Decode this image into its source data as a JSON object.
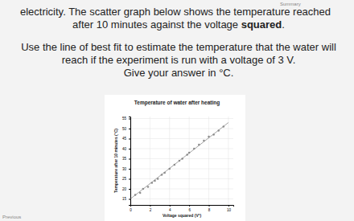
{
  "nav": {
    "summary": "Summary",
    "previous": "Previous"
  },
  "question": {
    "line1": "electricity. The scatter graph below shows the temperature reached",
    "line2": {
      "before": "after 10 minutes against the voltage ",
      "bold": "squared",
      "after": "."
    },
    "line3": "Use the line of best fit to estimate the temperature that the water will",
    "line4": "reach if the experiment is run with a voltage of 3 V.",
    "line5": "Give your answer in °C."
  },
  "chart_data": {
    "type": "scatter",
    "title": "Temperature of water after heating",
    "x_label": "Voltage squared (V²)",
    "y_label": "Temperature after 10 minutes (°C)",
    "x": [
      0.5,
      1,
      1.3,
      1.8,
      2.2,
      2.5,
      2.8,
      3.2,
      3.5,
      4,
      4.5,
      5,
      5.3,
      5.8,
      6,
      6.5,
      7,
      7.5,
      8,
      8.5,
      9,
      9.5
    ],
    "y": [
      17,
      18,
      20,
      21,
      23,
      24,
      25,
      27,
      28,
      30,
      32,
      34,
      35,
      37,
      38,
      40,
      42,
      44,
      46,
      47,
      49,
      51
    ],
    "fit_line": {
      "x": [
        0,
        10
      ],
      "y": [
        15,
        53
      ]
    },
    "color": "#8c8c8c",
    "xlim": [
      0,
      10.5
    ],
    "ylim": [
      12,
      56
    ],
    "xticks": [
      0,
      2,
      4,
      6,
      8,
      10
    ],
    "yticks": [
      15,
      20,
      25,
      30,
      35,
      40,
      45,
      50,
      55
    ],
    "grid": true,
    "marker": "circle"
  }
}
